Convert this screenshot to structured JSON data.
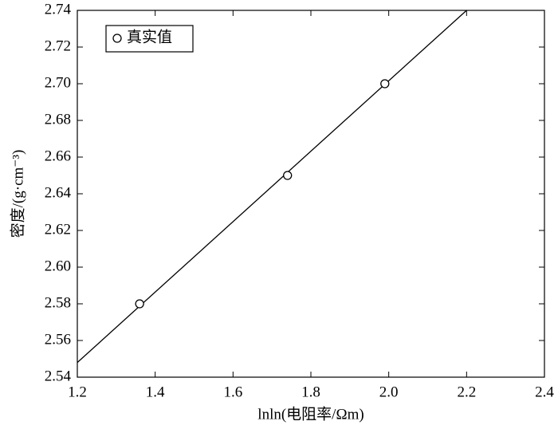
{
  "chart_data": {
    "type": "scatter",
    "xlabel": "lnln(电阻率/Ωm)",
    "ylabel": "密度/(g·cm⁻³)",
    "series": [
      {
        "name": "真实值",
        "color": "#000000",
        "x": [
          1.36,
          1.74,
          1.99
        ],
        "values": [
          2.58,
          2.65,
          2.7
        ]
      }
    ],
    "fit_line": {
      "color": "#000000",
      "x": [
        1.2,
        2.2
      ],
      "values": [
        2.548,
        2.74
      ]
    },
    "xlim": [
      1.2,
      2.4
    ],
    "xticks": [
      1.2,
      1.4,
      1.6,
      1.8,
      {
        "value": 2,
        "label": "2.0"
      },
      2.2,
      2.4
    ],
    "ylim": [
      2.54,
      2.74
    ],
    "yticks": [
      2.54,
      2.56,
      2.58,
      {
        "value": 2.6,
        "label": "2.60"
      },
      2.62,
      2.64,
      2.66,
      2.68,
      {
        "value": 2.7,
        "label": "2.70"
      },
      2.72,
      2.74
    ],
    "legend": "upper-left"
  }
}
